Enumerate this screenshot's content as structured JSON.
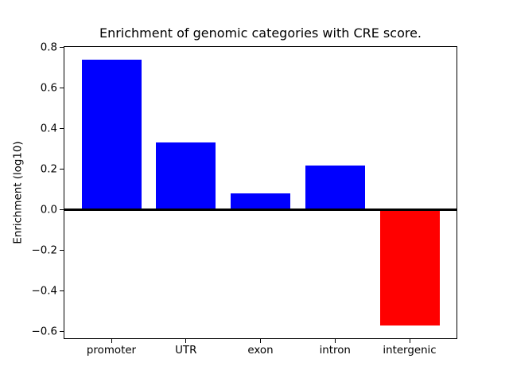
{
  "figure": {
    "background": "#ffffff",
    "text_color": "#000000",
    "axis_color": "#000000"
  },
  "chart_data": {
    "type": "bar",
    "title": "Enrichment of genomic categories with CRE score.",
    "ylabel": "Enrichment (log10)",
    "xlabel": "",
    "categories": [
      "promoter",
      "UTR",
      "exon",
      "intron",
      "intergenic"
    ],
    "values": [
      0.74,
      0.33,
      0.08,
      0.22,
      -0.57
    ],
    "bar_colors": [
      "#0000ff",
      "#0000ff",
      "#0000ff",
      "#0000ff",
      "#ff0000"
    ],
    "positive_color": "#0000ff",
    "negative_color": "#ff0000",
    "y_ticks": [
      0.8,
      0.6,
      0.4,
      0.2,
      0.0,
      -0.2,
      -0.4,
      -0.6
    ],
    "ylim": [
      -0.636,
      0.806
    ],
    "xlim": [
      -0.64,
      4.64
    ],
    "bar_width": 0.8,
    "zero_line": {
      "y": 0.0,
      "color": "#000000"
    },
    "grid": false,
    "legend": null
  }
}
